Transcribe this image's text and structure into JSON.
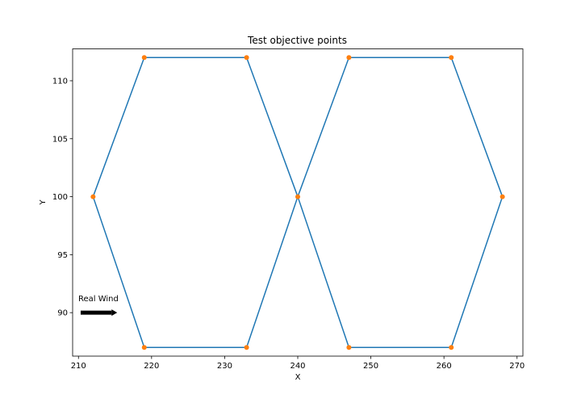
{
  "chart_data": {
    "type": "line",
    "title": "Test objective points",
    "xlabel": "X",
    "ylabel": "Y",
    "xlim": [
      209.2,
      270.8
    ],
    "ylim": [
      86.25,
      112.75
    ],
    "xticks": [
      210,
      220,
      230,
      240,
      250,
      260,
      270
    ],
    "yticks": [
      90,
      95,
      100,
      105,
      110
    ],
    "grid": false,
    "series": [
      {
        "kind": "line",
        "color": "#1f77b4",
        "x": [
          240,
          233,
          219,
          212,
          219,
          233,
          240,
          247,
          261,
          268,
          261,
          247,
          240
        ],
        "y": [
          100,
          87,
          87,
          100,
          112,
          112,
          100,
          87,
          87,
          100,
          112,
          112,
          100
        ]
      },
      {
        "kind": "scatter",
        "color": "#ff7f0e",
        "x": [
          212,
          219,
          219,
          233,
          233,
          240,
          247,
          247,
          261,
          261,
          268
        ],
        "y": [
          100,
          112,
          87,
          112,
          87,
          100,
          112,
          87,
          112,
          87,
          100
        ]
      }
    ],
    "annotation": {
      "text": "Real Wind",
      "arrow_from": [
        210.3,
        90
      ],
      "arrow_to": [
        215.3,
        90
      ],
      "color": "#000000"
    }
  }
}
